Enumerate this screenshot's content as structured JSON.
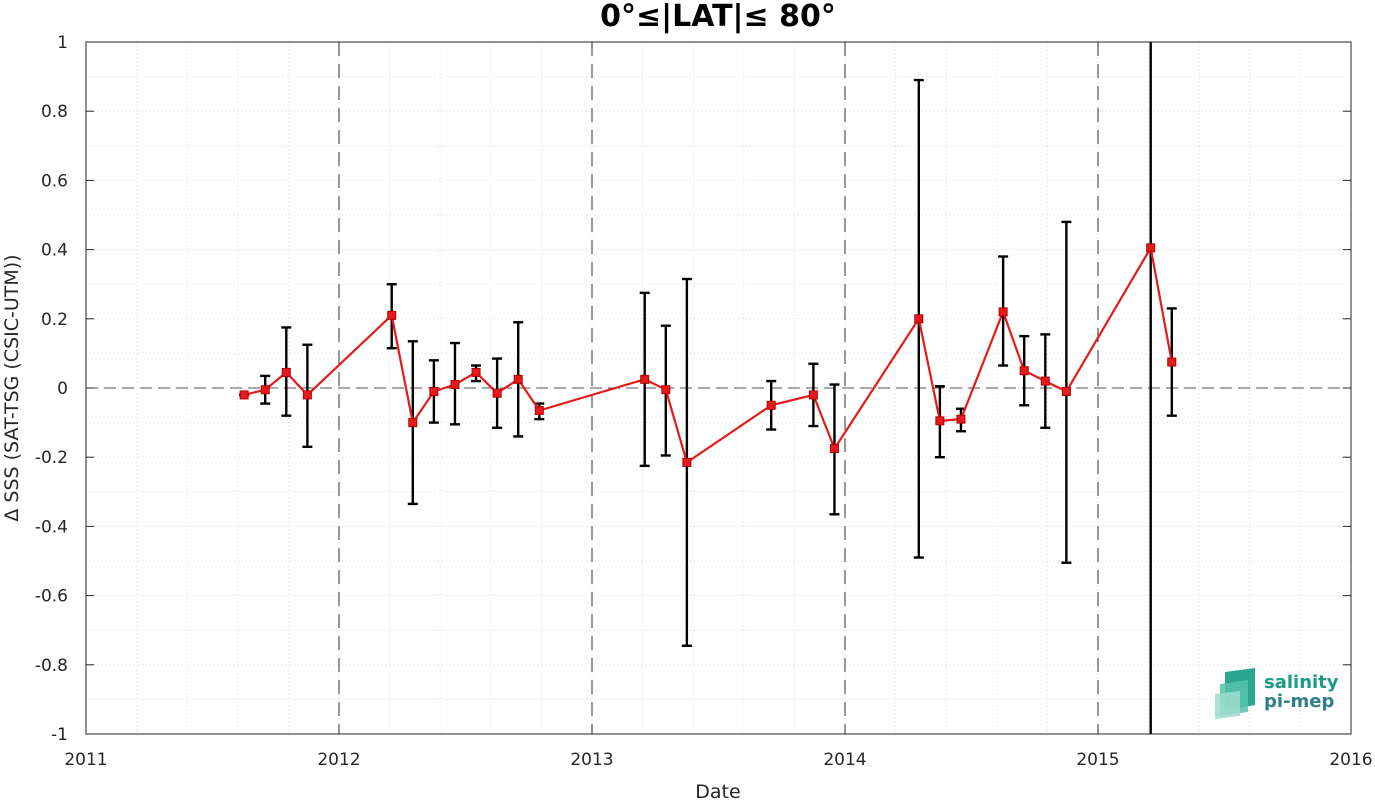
{
  "chart_data": {
    "type": "line",
    "title": "0°≤|LAT|≤ 80°",
    "xlabel": "Date",
    "ylabel": "Δ SSS (SAT-TSG (CSIC-UTM))",
    "xlim": [
      "2011",
      "2016"
    ],
    "ylim": [
      -1,
      1
    ],
    "x_tick_labels": [
      "2011",
      "2012",
      "2013",
      "2014",
      "2015",
      "2016"
    ],
    "y_tick_labels": [
      "1",
      "0.8",
      "0.6",
      "0.4",
      "0.2",
      "0",
      "-0.2",
      "-0.4",
      "-0.6",
      "-0.8",
      "-1"
    ],
    "y_ticks": [
      1,
      0.8,
      0.6,
      0.4,
      0.2,
      0,
      -0.2,
      -0.4,
      -0.6,
      -0.8,
      -1
    ],
    "grid": true,
    "year_dividers": [
      "2012",
      "2013",
      "2014",
      "2015"
    ],
    "reference_line": 0,
    "series": [
      {
        "color": "#e41a1c",
        "marker": "square",
        "points": [
          {
            "date": "2011-08",
            "y": -0.02,
            "err_low": -0.02,
            "err_high": -0.02
          },
          {
            "date": "2011-09",
            "y": -0.005,
            "err_low": -0.045,
            "err_high": 0.035
          },
          {
            "date": "2011-10",
            "y": 0.045,
            "err_low": -0.08,
            "err_high": 0.175
          },
          {
            "date": "2011-11",
            "y": -0.02,
            "err_low": -0.17,
            "err_high": 0.125
          },
          {
            "date": "2012-03",
            "y": 0.21,
            "err_low": 0.115,
            "err_high": 0.3
          },
          {
            "date": "2012-04",
            "y": -0.1,
            "err_low": -0.335,
            "err_high": 0.135
          },
          {
            "date": "2012-05",
            "y": -0.01,
            "err_low": -0.1,
            "err_high": 0.08
          },
          {
            "date": "2012-06",
            "y": 0.01,
            "err_low": -0.105,
            "err_high": 0.13
          },
          {
            "date": "2012-07",
            "y": 0.045,
            "err_low": 0.02,
            "err_high": 0.065
          },
          {
            "date": "2012-08",
            "y": -0.015,
            "err_low": -0.115,
            "err_high": 0.085
          },
          {
            "date": "2012-09",
            "y": 0.025,
            "err_low": -0.14,
            "err_high": 0.19
          },
          {
            "date": "2012-10",
            "y": -0.065,
            "err_low": -0.09,
            "err_high": -0.045
          },
          {
            "date": "2013-03",
            "y": 0.025,
            "err_low": -0.225,
            "err_high": 0.275
          },
          {
            "date": "2013-04",
            "y": -0.005,
            "err_low": -0.195,
            "err_high": 0.18
          },
          {
            "date": "2013-05",
            "y": -0.215,
            "err_low": -0.745,
            "err_high": 0.315
          },
          {
            "date": "2013-09",
            "y": -0.05,
            "err_low": -0.12,
            "err_high": 0.02
          },
          {
            "date": "2013-11",
            "y": -0.02,
            "err_low": -0.11,
            "err_high": 0.07
          },
          {
            "date": "2013-12",
            "y": -0.175,
            "err_low": -0.365,
            "err_high": 0.01
          },
          {
            "date": "2014-04",
            "y": 0.2,
            "err_low": -0.49,
            "err_high": 0.89
          },
          {
            "date": "2014-05",
            "y": -0.095,
            "err_low": -0.2,
            "err_high": 0.005
          },
          {
            "date": "2014-06",
            "y": -0.09,
            "err_low": -0.125,
            "err_high": -0.06
          },
          {
            "date": "2014-08",
            "y": 0.22,
            "err_low": 0.065,
            "err_high": 0.38
          },
          {
            "date": "2014-09",
            "y": 0.05,
            "err_low": -0.05,
            "err_high": 0.15
          },
          {
            "date": "2014-10",
            "y": 0.02,
            "err_low": -0.115,
            "err_high": 0.155
          },
          {
            "date": "2014-11",
            "y": -0.01,
            "err_low": -0.505,
            "err_high": 0.48
          },
          {
            "date": "2015-03",
            "y": 0.405,
            "err_low": -1.0,
            "err_high": 1.0
          },
          {
            "date": "2015-04",
            "y": 0.075,
            "err_low": -0.08,
            "err_high": 0.23
          }
        ]
      }
    ]
  },
  "logo": {
    "line1": "salinity",
    "line2": "pi-mep"
  },
  "colors": {
    "series": "#e41a1c",
    "errorbar": "#000000",
    "grid_minor": "#d9d9d9",
    "logo_text": "#1a9a8a"
  }
}
